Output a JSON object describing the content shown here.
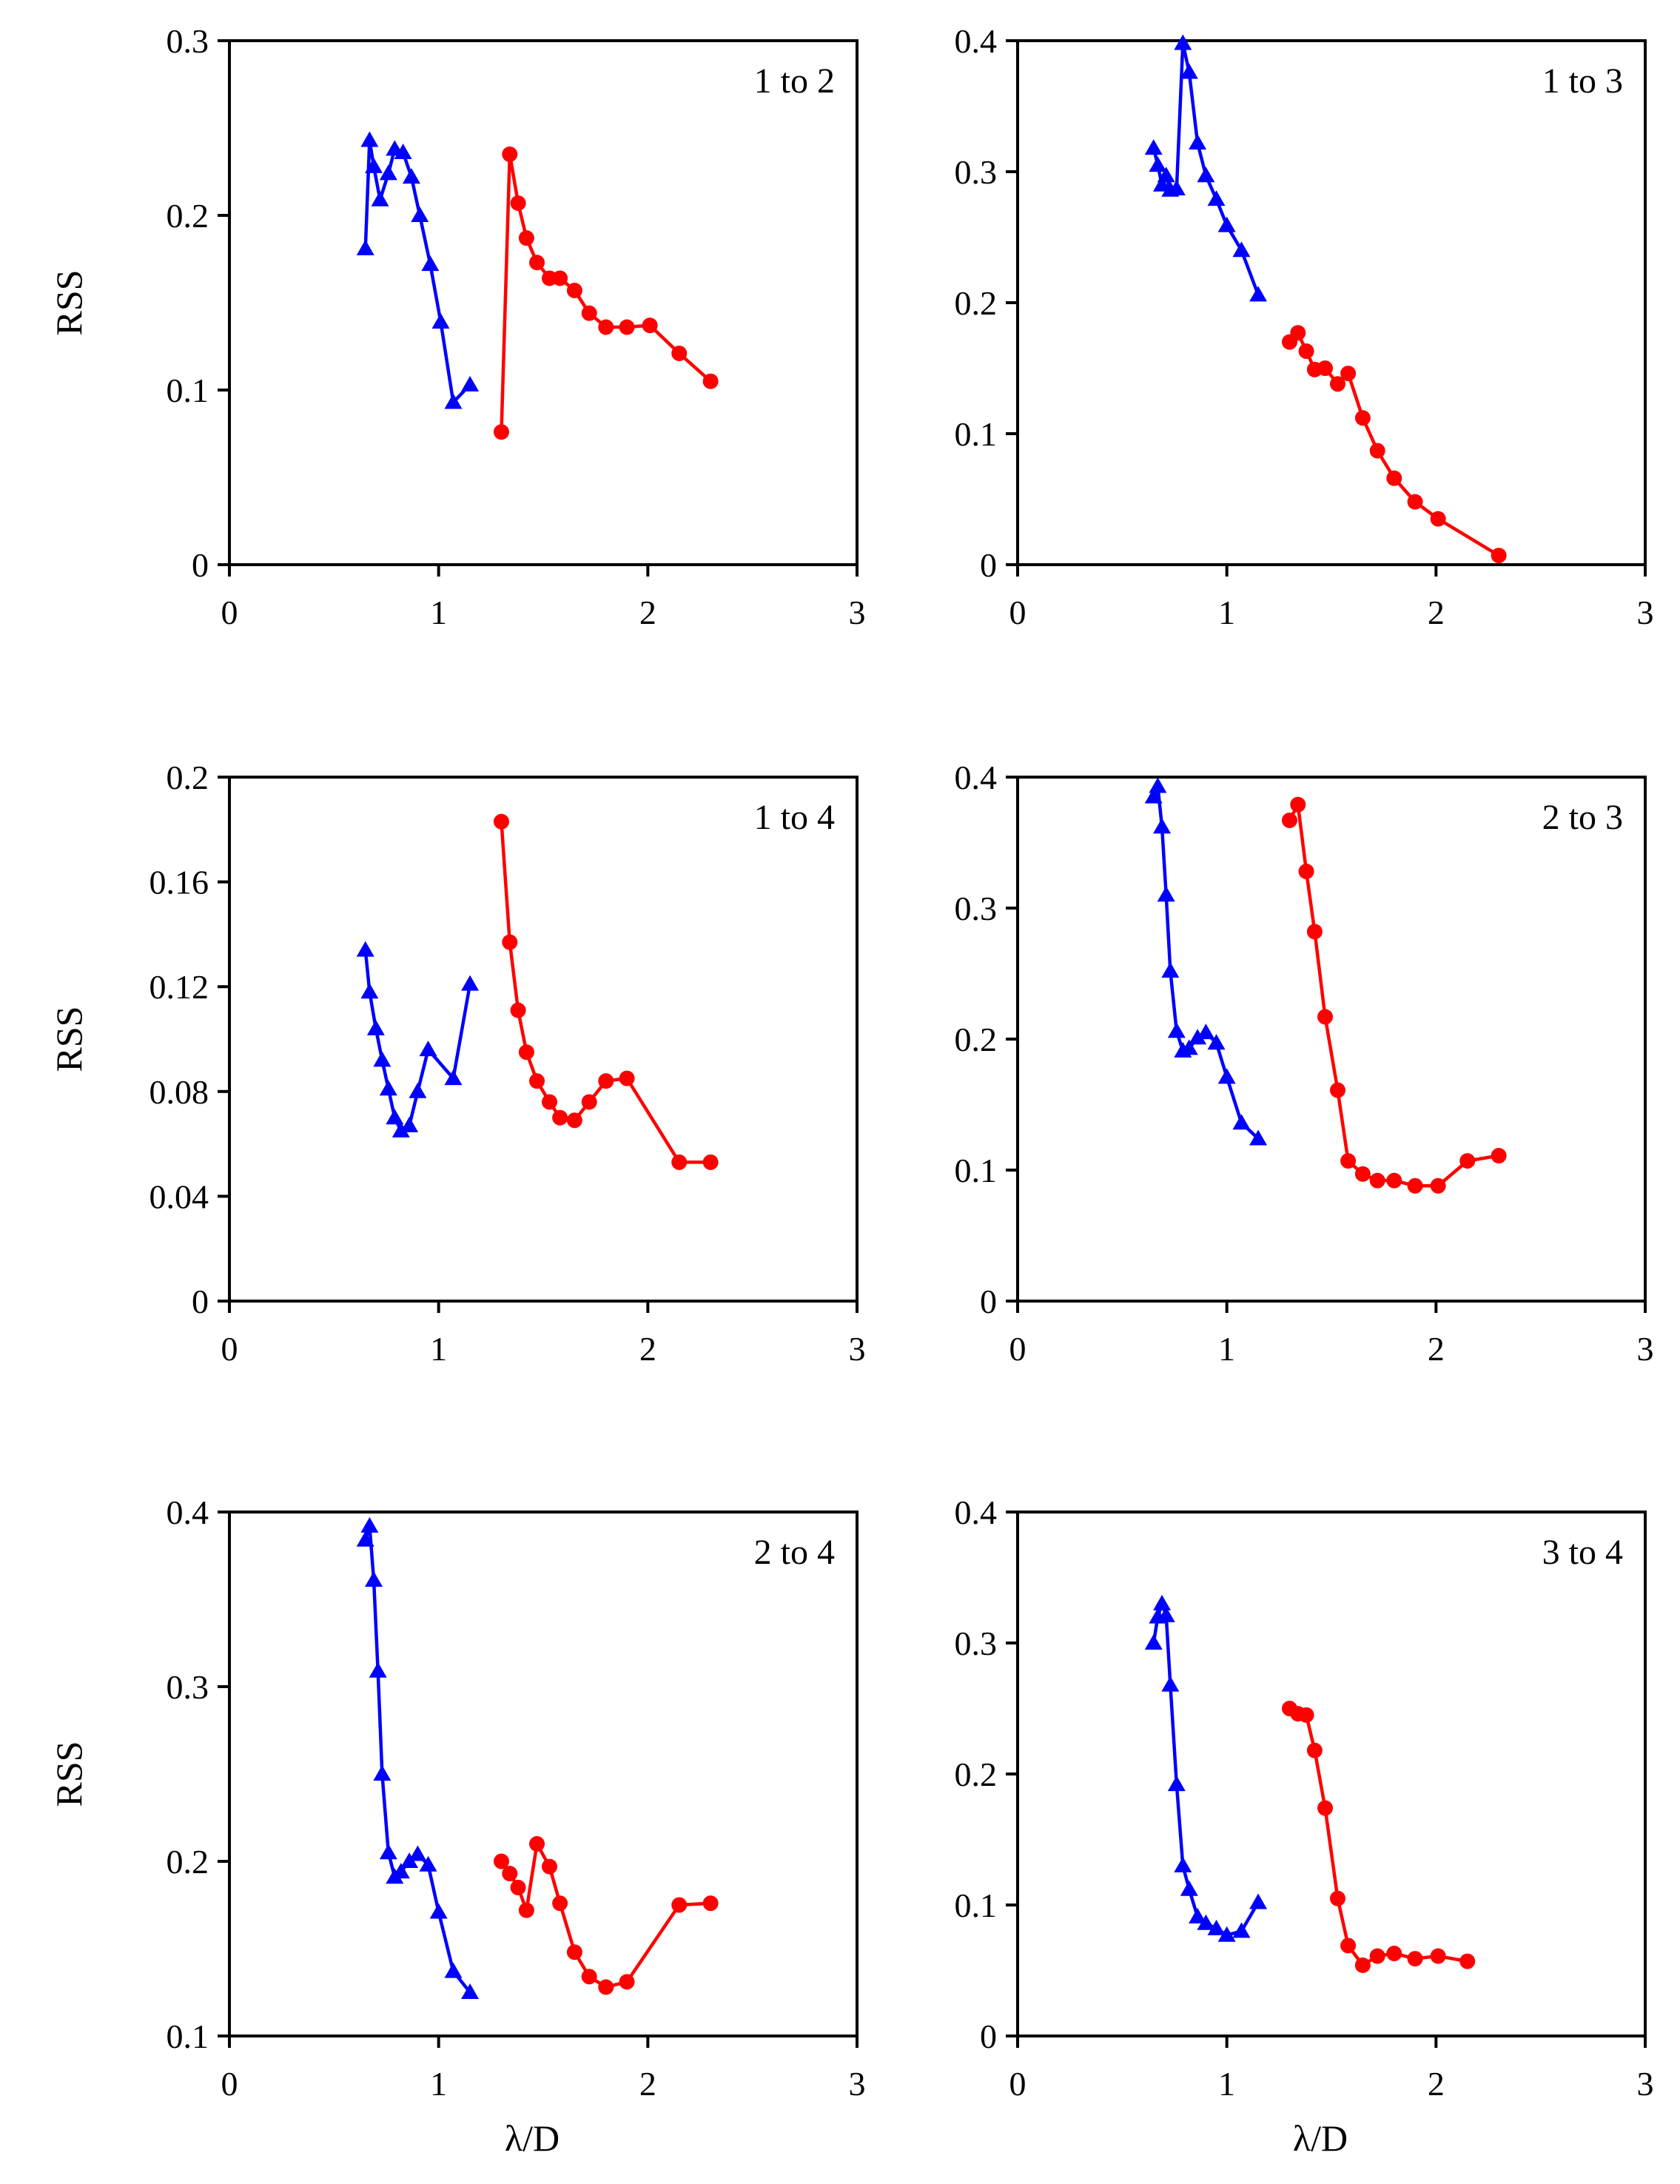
{
  "colors": {
    "series_triangle": "#0000ff",
    "series_circle": "#ff0000",
    "axis": "#000000"
  },
  "chart_data": [
    {
      "type": "line",
      "title": "1 to 2",
      "xlabel": "",
      "ylabel": "RSS",
      "xlim": [
        0,
        3
      ],
      "ylim": [
        0,
        0.3
      ],
      "xticks": [
        "0",
        "1",
        "2",
        "3"
      ],
      "yticks": [
        "0",
        "0.1",
        "0.2",
        "0.3"
      ],
      "series": [
        {
          "name": "blue-triangles",
          "marker": "triangle",
          "color": "#0000ff",
          "x": [
            0.65,
            0.67,
            0.69,
            0.72,
            0.76,
            0.79,
            0.83,
            0.87,
            0.91,
            0.96,
            1.01,
            1.07,
            1.15
          ],
          "y": [
            0.181,
            0.243,
            0.228,
            0.209,
            0.224,
            0.238,
            0.236,
            0.222,
            0.2,
            0.172,
            0.139,
            0.093,
            0.103
          ]
        },
        {
          "name": "red-circles",
          "marker": "circle",
          "color": "#ff0000",
          "x": [
            1.3,
            1.34,
            1.38,
            1.42,
            1.47,
            1.53,
            1.58,
            1.65,
            1.72,
            1.8,
            1.9,
            2.01,
            2.15,
            2.3
          ],
          "y": [
            0.076,
            0.235,
            0.207,
            0.187,
            0.173,
            0.164,
            0.164,
            0.157,
            0.144,
            0.136,
            0.136,
            0.137,
            0.121,
            0.105
          ]
        }
      ]
    },
    {
      "type": "line",
      "title": "1 to 3",
      "xlabel": "",
      "ylabel": "",
      "xlim": [
        0,
        3
      ],
      "ylim": [
        0,
        0.4
      ],
      "xticks": [
        "0",
        "1",
        "2",
        "3"
      ],
      "yticks": [
        "0",
        "0.1",
        "0.2",
        "0.3",
        "0.4"
      ],
      "series": [
        {
          "name": "blue-triangles",
          "marker": "triangle",
          "color": "#0000ff",
          "x": [
            0.65,
            0.67,
            0.69,
            0.71,
            0.73,
            0.76,
            0.79,
            0.82,
            0.86,
            0.9,
            0.95,
            1.0,
            1.07,
            1.15
          ],
          "y": [
            0.318,
            0.305,
            0.29,
            0.297,
            0.286,
            0.287,
            0.398,
            0.376,
            0.322,
            0.297,
            0.279,
            0.259,
            0.24,
            0.206
          ]
        },
        {
          "name": "red-circles",
          "marker": "circle",
          "color": "#ff0000",
          "x": [
            1.3,
            1.34,
            1.38,
            1.42,
            1.47,
            1.53,
            1.58,
            1.65,
            1.72,
            1.8,
            1.9,
            2.01,
            2.3
          ],
          "y": [
            0.17,
            0.177,
            0.163,
            0.149,
            0.15,
            0.138,
            0.146,
            0.112,
            0.087,
            0.066,
            0.048,
            0.035,
            0.007
          ]
        }
      ]
    },
    {
      "type": "line",
      "title": "1 to 4",
      "xlabel": "",
      "ylabel": "RSS",
      "xlim": [
        0,
        3
      ],
      "ylim": [
        0,
        0.2
      ],
      "xticks": [
        "0",
        "1",
        "2",
        "3"
      ],
      "yticks": [
        "0",
        "0.04",
        "0.08",
        "0.12",
        "0.16",
        "0.2"
      ],
      "series": [
        {
          "name": "blue-triangles",
          "marker": "triangle",
          "color": "#0000ff",
          "x": [
            0.65,
            0.67,
            0.7,
            0.73,
            0.76,
            0.79,
            0.82,
            0.86,
            0.9,
            0.95,
            1.07,
            1.15
          ],
          "y": [
            0.134,
            0.118,
            0.104,
            0.092,
            0.081,
            0.07,
            0.065,
            0.067,
            0.08,
            0.096,
            0.085,
            0.121
          ]
        },
        {
          "name": "red-circles",
          "marker": "circle",
          "color": "#ff0000",
          "x": [
            1.3,
            1.34,
            1.38,
            1.42,
            1.47,
            1.53,
            1.58,
            1.65,
            1.72,
            1.8,
            1.9,
            2.15,
            2.3
          ],
          "y": [
            0.183,
            0.137,
            0.111,
            0.095,
            0.084,
            0.076,
            0.07,
            0.069,
            0.076,
            0.084,
            0.085,
            0.053,
            0.053
          ]
        }
      ]
    },
    {
      "type": "line",
      "title": "2 to 3",
      "xlabel": "",
      "ylabel": "",
      "xlim": [
        0,
        3
      ],
      "ylim": [
        0,
        0.4
      ],
      "xticks": [
        "0",
        "1",
        "2",
        "3"
      ],
      "yticks": [
        "0",
        "0.1",
        "0.2",
        "0.3",
        "0.4"
      ],
      "series": [
        {
          "name": "blue-triangles",
          "marker": "triangle",
          "color": "#0000ff",
          "x": [
            0.65,
            0.67,
            0.69,
            0.71,
            0.73,
            0.76,
            0.79,
            0.82,
            0.86,
            0.9,
            0.95,
            1.0,
            1.07,
            1.15
          ],
          "y": [
            0.385,
            0.393,
            0.362,
            0.31,
            0.252,
            0.206,
            0.191,
            0.193,
            0.201,
            0.205,
            0.197,
            0.171,
            0.136,
            0.124
          ]
        },
        {
          "name": "red-circles",
          "marker": "circle",
          "color": "#ff0000",
          "x": [
            1.3,
            1.34,
            1.38,
            1.42,
            1.47,
            1.53,
            1.58,
            1.65,
            1.72,
            1.8,
            1.9,
            2.01,
            2.15,
            2.3
          ],
          "y": [
            0.367,
            0.379,
            0.328,
            0.282,
            0.217,
            0.161,
            0.107,
            0.097,
            0.092,
            0.092,
            0.088,
            0.088,
            0.107,
            0.111
          ]
        }
      ]
    },
    {
      "type": "line",
      "title": "2 to 4",
      "xlabel": "λ/D",
      "ylabel": "RSS",
      "xlim": [
        0,
        3
      ],
      "ylim": [
        0.1,
        0.4
      ],
      "xticks": [
        "0",
        "1",
        "2",
        "3"
      ],
      "yticks": [
        "0.1",
        "0.2",
        "0.3",
        "0.4"
      ],
      "series": [
        {
          "name": "blue-triangles",
          "marker": "triangle",
          "color": "#0000ff",
          "x": [
            0.65,
            0.67,
            0.69,
            0.71,
            0.73,
            0.76,
            0.79,
            0.82,
            0.86,
            0.9,
            0.95,
            1.0,
            1.07,
            1.15
          ],
          "y": [
            0.384,
            0.392,
            0.361,
            0.309,
            0.25,
            0.205,
            0.191,
            0.194,
            0.2,
            0.204,
            0.198,
            0.171,
            0.137,
            0.125
          ]
        },
        {
          "name": "red-circles",
          "marker": "circle",
          "color": "#ff0000",
          "x": [
            1.3,
            1.34,
            1.38,
            1.42,
            1.47,
            1.53,
            1.58,
            1.65,
            1.72,
            1.8,
            1.9,
            2.15,
            2.3
          ],
          "y": [
            0.2,
            0.193,
            0.185,
            0.172,
            0.21,
            0.197,
            0.176,
            0.148,
            0.134,
            0.128,
            0.131,
            0.175,
            0.176
          ]
        }
      ]
    },
    {
      "type": "line",
      "title": "3 to 4",
      "xlabel": "λ/D",
      "ylabel": "",
      "xlim": [
        0,
        3
      ],
      "ylim": [
        0,
        0.4
      ],
      "xticks": [
        "0",
        "1",
        "2",
        "3"
      ],
      "yticks": [
        "0",
        "0.1",
        "0.2",
        "0.3",
        "0.4"
      ],
      "series": [
        {
          "name": "blue-triangles",
          "marker": "triangle",
          "color": "#0000ff",
          "x": [
            0.65,
            0.67,
            0.69,
            0.71,
            0.73,
            0.76,
            0.79,
            0.82,
            0.86,
            0.9,
            0.95,
            1.0,
            1.07,
            1.15
          ],
          "y": [
            0.3,
            0.32,
            0.33,
            0.321,
            0.268,
            0.192,
            0.13,
            0.112,
            0.091,
            0.086,
            0.082,
            0.077,
            0.08,
            0.102
          ]
        },
        {
          "name": "red-circles",
          "marker": "circle",
          "color": "#ff0000",
          "x": [
            1.3,
            1.34,
            1.38,
            1.42,
            1.47,
            1.53,
            1.58,
            1.65,
            1.72,
            1.8,
            1.9,
            2.01,
            2.15
          ],
          "y": [
            0.25,
            0.246,
            0.245,
            0.218,
            0.174,
            0.105,
            0.069,
            0.054,
            0.061,
            0.063,
            0.059,
            0.061,
            0.057
          ]
        }
      ]
    }
  ]
}
